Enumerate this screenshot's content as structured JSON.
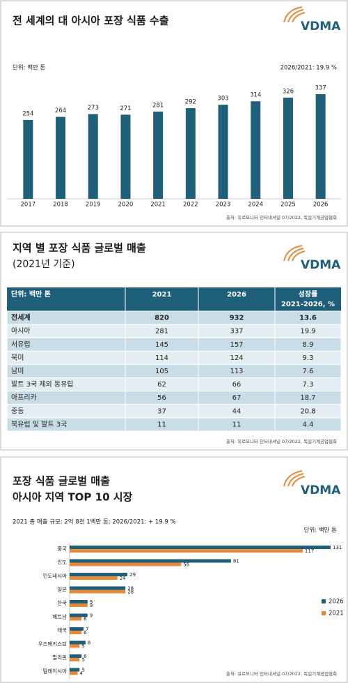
{
  "logo": "VDMA",
  "chart_data": [
    {
      "type": "bar",
      "title": "전 세계의 대 아시아 포장 식품 수출",
      "unit": "단위: 백만 톤",
      "annotation": "2026/2021: 19.9 %",
      "source": "출처: 유로모니터 인터내셔널 07/2022, 독일기계공업협회",
      "categories": [
        "2017",
        "2018",
        "2019",
        "2020",
        "2021",
        "2022",
        "2023",
        "2024",
        "2025",
        "2026"
      ],
      "values": [
        254,
        264,
        273,
        271,
        281,
        292,
        303,
        314,
        326,
        337
      ],
      "color": "#1f5f7a"
    },
    {
      "type": "hbar",
      "title": "포장 식품 글로벌 매출",
      "subtitle": "아시아 지역 TOP 10 시장",
      "annotation": "2021 총 매출 규모: 2억 8천 1백만 톤; 2026/2021: + 19.9 %",
      "unit": "단위: 백만 톤",
      "source": "출처: 유로모니터 인터내셔널 07/2022, 독일기계공업협회",
      "categories": [
        "중국",
        "인도",
        "인도네시아",
        "일본",
        "한국",
        "베트남",
        "태국",
        "우즈베키스탄",
        "필리핀",
        "말레이시아"
      ],
      "series": [
        {
          "name": "2026",
          "color": "#1f5f7a",
          "values": [
            131,
            81,
            29,
            28,
            9,
            9,
            7,
            8,
            6,
            5
          ]
        },
        {
          "name": "2021",
          "color": "#e8893a",
          "values": [
            117,
            56,
            24,
            28,
            9,
            6,
            6,
            5,
            5,
            4
          ]
        }
      ]
    }
  ],
  "table": {
    "title": "지역 별 포장 식품 글로벌 매출",
    "subtitle": "(2021년 기준)",
    "header": [
      "단위: 백만 톤",
      "2021",
      "2026",
      "성장률\n2021-2026, %"
    ],
    "rows": [
      [
        "전세계",
        820,
        932,
        13.6
      ],
      [
        "아시아",
        281,
        337,
        19.9
      ],
      [
        "서유럽",
        145,
        157,
        8.9
      ],
      [
        "북미",
        114,
        124,
        9.3
      ],
      [
        "남미",
        105,
        113,
        7.6
      ],
      [
        "발트 3국 제외 동유럽",
        62,
        66,
        7.3
      ],
      [
        "아프리카",
        56,
        67,
        18.7
      ],
      [
        "중동",
        37,
        44,
        20.8
      ],
      [
        "북유럽 및 발트 3국",
        11,
        11,
        4.4
      ]
    ],
    "source": "출처: 유로모니터 인터내셔널 07/2022, 독일기계공업협회"
  }
}
